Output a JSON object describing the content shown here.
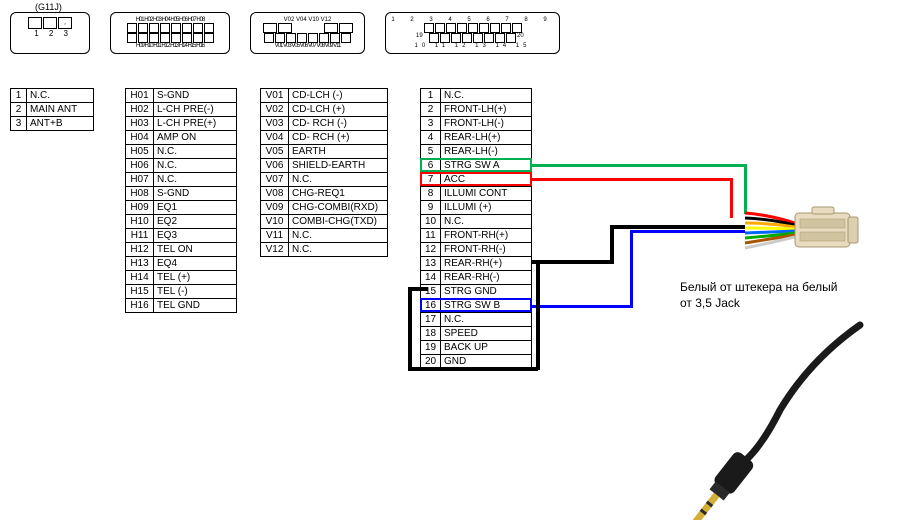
{
  "connector_title": "(G11J)",
  "connectors": {
    "a": {
      "top": [
        "",
        "",
        ""
      ],
      "bottom_nums": [
        "1",
        "2",
        "3"
      ]
    },
    "b": {
      "top": "H01 H02 H03 H04 H05 H06 H07 H08",
      "bottom": "H09 H10 H11 H12 H13 H14 H15 H16"
    },
    "c": {
      "top": "V02 V04 V10 V12",
      "bottom": "V01 V03 V05 V06 V07 V08 V09 V11"
    },
    "d": {
      "top": "1 2 3 4 5 6 7 8 9",
      "bottom": "19 20",
      "mid": "10 11 12 13 14 15"
    }
  },
  "table_a": {
    "rows": [
      {
        "pin": "1",
        "val": "N.C."
      },
      {
        "pin": "2",
        "val": "MAIN ANT"
      },
      {
        "pin": "3",
        "val": "ANT+B"
      }
    ]
  },
  "table_h": {
    "rows": [
      {
        "pin": "H01",
        "val": "S-GND"
      },
      {
        "pin": "H02",
        "val": "L-CH PRE(-)"
      },
      {
        "pin": "H03",
        "val": "L-CH PRE(+)"
      },
      {
        "pin": "H04",
        "val": "AMP ON"
      },
      {
        "pin": "H05",
        "val": "N.C."
      },
      {
        "pin": "H06",
        "val": "N.C."
      },
      {
        "pin": "H07",
        "val": "N.C."
      },
      {
        "pin": "H08",
        "val": "S-GND"
      },
      {
        "pin": "H09",
        "val": "EQ1"
      },
      {
        "pin": "H10",
        "val": "EQ2"
      },
      {
        "pin": "H11",
        "val": "EQ3"
      },
      {
        "pin": "H12",
        "val": "TEL ON"
      },
      {
        "pin": "H13",
        "val": "EQ4"
      },
      {
        "pin": "H14",
        "val": "TEL (+)"
      },
      {
        "pin": "H15",
        "val": "TEL (-)"
      },
      {
        "pin": "H16",
        "val": "TEL GND"
      }
    ]
  },
  "table_v": {
    "rows": [
      {
        "pin": "V01",
        "val": "CD-LCH (-)"
      },
      {
        "pin": "V02",
        "val": "CD-LCH (+)"
      },
      {
        "pin": "V03",
        "val": "CD- RCH (-)"
      },
      {
        "pin": "V04",
        "val": "CD- RCH (+)"
      },
      {
        "pin": "V05",
        "val": "EARTH"
      },
      {
        "pin": "V06",
        "val": "SHIELD-EARTH"
      },
      {
        "pin": "V07",
        "val": "N.C."
      },
      {
        "pin": "V08",
        "val": "CHG-REQ1"
      },
      {
        "pin": "V09",
        "val": "CHG-COMBI(RXD)"
      },
      {
        "pin": "V10",
        "val": "COMBI-CHG(TXD)"
      },
      {
        "pin": "V11",
        "val": "N.C."
      },
      {
        "pin": "V12",
        "val": "N.C."
      }
    ]
  },
  "table_main": {
    "rows": [
      {
        "pin": "1",
        "val": "N.C."
      },
      {
        "pin": "2",
        "val": "FRONT-LH(+)"
      },
      {
        "pin": "3",
        "val": "FRONT-LH(-)"
      },
      {
        "pin": "4",
        "val": "REAR-LH(+)"
      },
      {
        "pin": "5",
        "val": "REAR-LH(-)"
      },
      {
        "pin": "6",
        "val": "STRG SW A"
      },
      {
        "pin": "7",
        "val": "ACC"
      },
      {
        "pin": "8",
        "val": "ILLUMI CONT"
      },
      {
        "pin": "9",
        "val": "ILLUMI (+)"
      },
      {
        "pin": "10",
        "val": "N.C."
      },
      {
        "pin": "11",
        "val": "FRONT-RH(+)"
      },
      {
        "pin": "12",
        "val": "FRONT-RH(-)"
      },
      {
        "pin": "13",
        "val": "REAR-RH(+)"
      },
      {
        "pin": "14",
        "val": "REAR-RH(-)"
      },
      {
        "pin": "15",
        "val": "STRG GND"
      },
      {
        "pin": "16",
        "val": "STRG SW B"
      },
      {
        "pin": "17",
        "val": "N.C."
      },
      {
        "pin": "18",
        "val": "SPEED"
      },
      {
        "pin": "19",
        "val": "BACK UP"
      },
      {
        "pin": "20",
        "val": "GND"
      }
    ]
  },
  "annotation_text_1": "Белый от штекера на белый",
  "annotation_text_2": "от 3,5 Jack",
  "wires": {
    "green": {
      "color": "#00b050",
      "width": 3
    },
    "red": {
      "color": "#ff0000",
      "width": 3
    },
    "black": {
      "color": "#000000",
      "width": 4
    },
    "blue": {
      "color": "#0000ff",
      "width": 3
    }
  },
  "highlights": {
    "green": {
      "color": "#00b050"
    },
    "red": {
      "color": "#ff0000"
    },
    "blue": {
      "color": "#0000ff"
    }
  },
  "iso_connector": {
    "body_color": "#e8dcc0",
    "shadow": "#a89870",
    "wire_colors": [
      "#ff0000",
      "#000000",
      "#ffaa00",
      "#ffff00",
      "#0066ff",
      "#00aa00",
      "#aa5500",
      "#ffffff"
    ]
  },
  "jack": {
    "tip_color": "#d4af37",
    "ring_color": "#c0a030",
    "sleeve_color": "#d4af37",
    "body_color": "#1a1a1a",
    "sep_color": "#2a2a2a"
  }
}
